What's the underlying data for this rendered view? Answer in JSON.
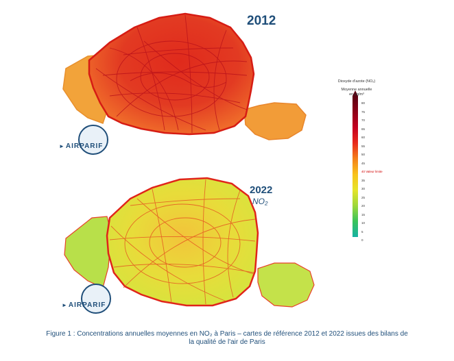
{
  "maps": [
    {
      "year": "2012",
      "pollutant": "",
      "logo": "AIRPARIF"
    },
    {
      "year": "2022",
      "pollutant": "NO₂",
      "logo": "AIRPARIF"
    }
  ],
  "legend": {
    "title": "Dioxyde d'azote (NO₂)",
    "subtitle_line1": "Moyenne annuelle",
    "subtitle_line2": "en µg/m³",
    "ticks": [
      "80",
      "75",
      "70",
      "65",
      "60",
      "55",
      "50",
      "45",
      "40 Valeur limite",
      "35",
      "30",
      "25",
      "20",
      "15",
      "10",
      "5",
      "0"
    ],
    "limit_tick": "40 Valeur limite",
    "colors": [
      "#5a0012",
      "#8e0018",
      "#c40020",
      "#e82a1c",
      "#f4801a",
      "#f8c21c",
      "#e6e42a",
      "#9ed83a",
      "#39c35a",
      "#16b2a4"
    ]
  },
  "caption": {
    "line1": "Figure 1 : Concentrations annuelles moyennes en NO₂ à Paris – cartes de référence 2012 et 2022 issues des bilans de",
    "line2": "la qualité de l'air de Paris"
  }
}
